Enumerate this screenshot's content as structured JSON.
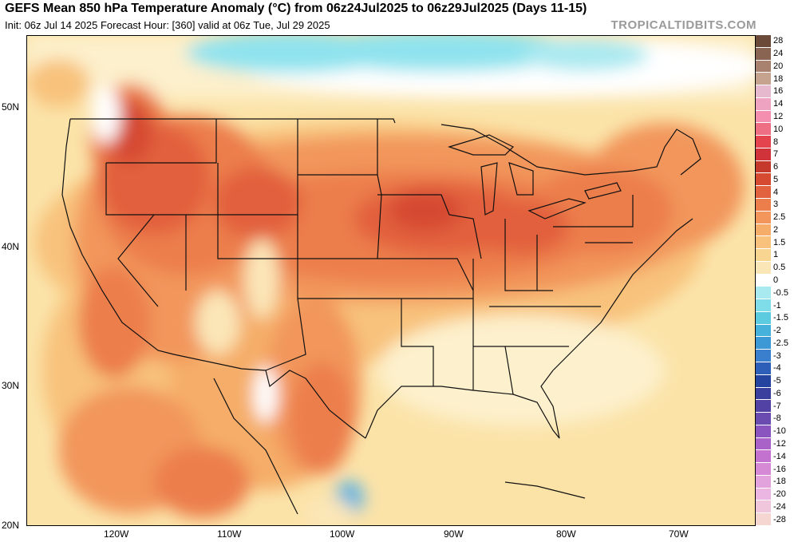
{
  "header": {
    "title": "GEFS Mean 850 hPa Temperature Anomaly (°C) from 06z24Jul2025 to 06z29Jul2025 (Days 11-15)",
    "subtitle": "Init: 06z Jul 14 2025   Forecast Hour: [360]   valid at 06z Tue, Jul 29 2025",
    "watermark": "TROPICALTIDBITS.COM"
  },
  "axes": {
    "lat_labels": [
      "50N",
      "40N",
      "30N",
      "20N"
    ],
    "lon_labels": [
      "120W",
      "110W",
      "100W",
      "90W",
      "80W",
      "70W"
    ]
  },
  "colorbar": {
    "labels": [
      "28",
      "24",
      "20",
      "18",
      "16",
      "14",
      "12",
      "10",
      "8",
      "7",
      "6",
      "5",
      "4",
      "3",
      "2.5",
      "2",
      "1.5",
      "1",
      "0.5",
      "0",
      "-0.5",
      "-1",
      "-1.5",
      "-2",
      "-2.5",
      "-3",
      "-4",
      "-5",
      "-6",
      "-7",
      "-8",
      "-10",
      "-12",
      "-14",
      "-16",
      "-18",
      "-20",
      "-24",
      "-28"
    ],
    "colors": [
      "#6b4a3a",
      "#8a6452",
      "#a8826f",
      "#c6a38f",
      "#e7b9cf",
      "#eea3c0",
      "#f58fb0",
      "#ee6f83",
      "#e4444d",
      "#d0333a",
      "#c5392c",
      "#d54a30",
      "#e2613e",
      "#ec7e4c",
      "#f2965b",
      "#f5ad69",
      "#f8c27c",
      "#f9d592",
      "#fbe6b8",
      "#ffffff",
      "#a9e9f0",
      "#7fdde9",
      "#5ccbe0",
      "#46b2dc",
      "#3d98d6",
      "#3a7fcd",
      "#2e5fb8",
      "#24449f",
      "#3a3f9e",
      "#5142a3",
      "#6a4bb0",
      "#8a55be",
      "#a963c8",
      "#c373cf",
      "#d68ad5",
      "#e2a2dc",
      "#ebb6e2",
      "#f0c6dc",
      "#f6d6d0"
    ]
  },
  "map": {
    "colors": {
      "ocean_pale": "#fbe3a8",
      "neutral_white": "#ffffff",
      "cold_cyan": "#8fe3ee",
      "cold_blue": "#62b4e2",
      "warm_light": "#f8c27c",
      "warm_mid": "#f2965b",
      "warm_strong": "#ec7e4c",
      "warm_hot": "#e2613e",
      "warm_hotter": "#d54a30",
      "border": "#111111"
    }
  }
}
